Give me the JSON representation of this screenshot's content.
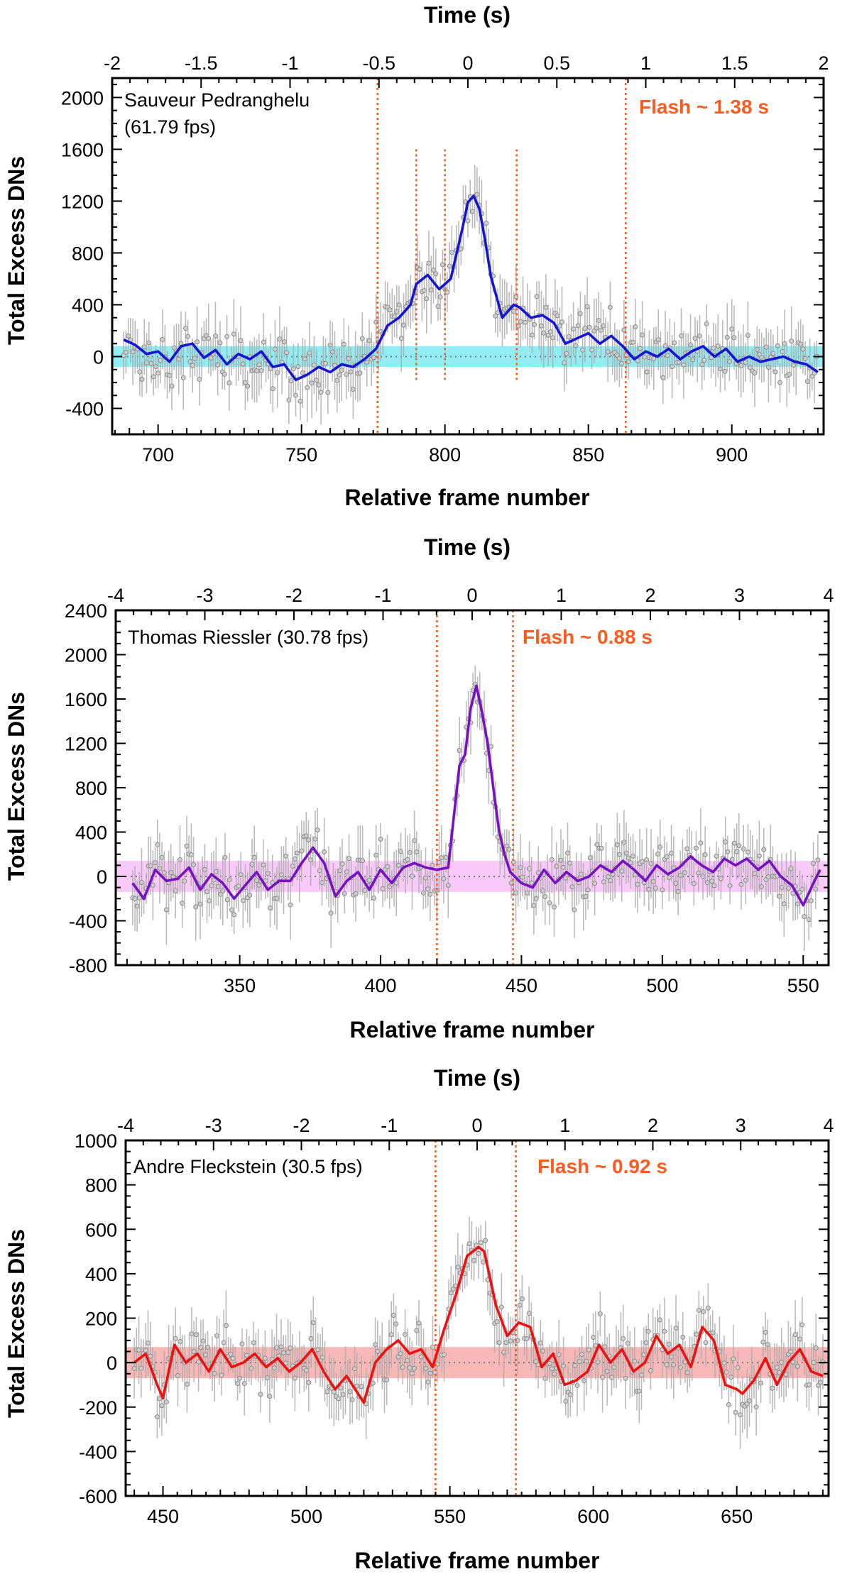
{
  "figure": {
    "colors": {
      "flash_line": "#ff5a1f",
      "points": "#aaaaaa",
      "zero_line": "#777777"
    }
  },
  "chart_data": [
    {
      "type": "line",
      "title": "Sauveur Pedranghelu",
      "subtitle": "(61.79 fps)",
      "annotation": "Flash ~ 1.38 s",
      "xlabel": "Relative frame number",
      "top_xlabel": "Time (s)",
      "ylabel": "Total Excess DNs",
      "xlim": [
        684,
        932
      ],
      "ylim": [
        -600,
        2150
      ],
      "xticks": [
        700,
        750,
        800,
        850,
        900
      ],
      "yticks": [
        -400,
        0,
        400,
        800,
        1200,
        1600,
        2000
      ],
      "top_xlim": [
        -2,
        2
      ],
      "top_xticks": [
        "-2",
        "-1.5",
        "-1",
        "-0.5",
        "0",
        "0.5",
        "1",
        "1.5",
        "2"
      ],
      "line_color": "#1515d4",
      "band_color": "#6fe6ee",
      "band": [
        -80,
        80
      ],
      "flash_lines": [
        776.5,
        863
      ],
      "sub_flash_lines": [
        {
          "x": 790,
          "y_top": 1600
        },
        {
          "x": 800,
          "y_top": 1600
        },
        {
          "x": 825,
          "y_top": 1600
        }
      ],
      "series": [
        {
          "name": "smoothed",
          "x": [
            688,
            692,
            696,
            700,
            704,
            708,
            712,
            716,
            720,
            724,
            728,
            732,
            736,
            740,
            744,
            748,
            752,
            756,
            760,
            764,
            768,
            772,
            776,
            780,
            784,
            788,
            790,
            794,
            798,
            802,
            806,
            808,
            810,
            812,
            814,
            816,
            820,
            824,
            826,
            830,
            834,
            838,
            842,
            846,
            850,
            854,
            858,
            862,
            866,
            870,
            874,
            878,
            882,
            886,
            890,
            894,
            898,
            902,
            906,
            910,
            914,
            918,
            922,
            926,
            930
          ],
          "y": [
            130,
            90,
            20,
            40,
            -40,
            80,
            100,
            -10,
            50,
            -60,
            20,
            -20,
            40,
            -80,
            -60,
            -180,
            -140,
            -80,
            -120,
            -60,
            -80,
            -20,
            60,
            240,
            300,
            400,
            560,
            630,
            520,
            600,
            980,
            1190,
            1240,
            1140,
            900,
            620,
            300,
            400,
            380,
            300,
            320,
            260,
            100,
            140,
            180,
            100,
            160,
            80,
            -20,
            40,
            0,
            60,
            -20,
            40,
            80,
            0,
            60,
            -40,
            0,
            -40,
            -20,
            0,
            -40,
            -60,
            -120
          ]
        }
      ]
    },
    {
      "type": "line",
      "title": "Thomas Riessler (30.78 fps)",
      "subtitle": "",
      "annotation": "Flash ~ 0.88 s",
      "xlabel": "Relative frame number",
      "top_xlabel": "Time (s)",
      "ylabel": "Total Excess DNs",
      "xlim": [
        306,
        559
      ],
      "ylim": [
        -800,
        2400
      ],
      "xticks": [
        350,
        400,
        450,
        500,
        550
      ],
      "yticks": [
        -800,
        -400,
        0,
        400,
        800,
        1200,
        1600,
        2000,
        2400
      ],
      "top_xlim": [
        -4,
        4
      ],
      "top_xticks": [
        "-4",
        "-3",
        "-2",
        "-1",
        "0",
        "1",
        "2",
        "3",
        "4"
      ],
      "line_color": "#7a10c4",
      "band_color": "#f7b8f7",
      "band": [
        -140,
        140
      ],
      "flash_lines": [
        420,
        447
      ],
      "sub_flash_lines": [],
      "series": [
        {
          "name": "smoothed",
          "x": [
            312,
            316,
            320,
            324,
            328,
            332,
            336,
            340,
            344,
            348,
            352,
            356,
            360,
            364,
            368,
            372,
            376,
            380,
            384,
            388,
            392,
            396,
            400,
            404,
            408,
            412,
            416,
            420,
            424,
            428,
            430,
            432,
            434,
            436,
            438,
            440,
            442,
            444,
            446,
            450,
            454,
            458,
            462,
            466,
            470,
            474,
            478,
            482,
            486,
            490,
            494,
            498,
            502,
            506,
            510,
            514,
            518,
            522,
            526,
            530,
            534,
            538,
            542,
            546,
            550,
            554,
            556
          ],
          "y": [
            -60,
            -200,
            60,
            -40,
            -20,
            80,
            -120,
            20,
            -60,
            -200,
            -80,
            40,
            -120,
            -40,
            -40,
            120,
            260,
            120,
            -180,
            -40,
            40,
            -120,
            60,
            -60,
            80,
            120,
            80,
            60,
            80,
            1000,
            1100,
            1520,
            1720,
            1480,
            1200,
            800,
            420,
            200,
            40,
            -60,
            -100,
            60,
            -60,
            40,
            -40,
            0,
            100,
            40,
            140,
            60,
            -40,
            100,
            20,
            80,
            180,
            100,
            40,
            160,
            100,
            160,
            60,
            140,
            0,
            -80,
            -260,
            -40,
            60
          ]
        }
      ]
    },
    {
      "type": "line",
      "title": "Andre Fleckstein  (30.5 fps)",
      "subtitle": "",
      "annotation": "Flash ~ 0.92 s",
      "xlabel": "Relative frame number",
      "top_xlabel": "Time (s)",
      "ylabel": "Total Excess DNs",
      "xlim": [
        437,
        682
      ],
      "ylim": [
        -600,
        1000
      ],
      "xticks": [
        450,
        500,
        550,
        600,
        650
      ],
      "yticks": [
        -600,
        -400,
        -200,
        0,
        200,
        400,
        600,
        800,
        1000
      ],
      "top_xlim": [
        -4,
        4
      ],
      "top_xticks": [
        "-4",
        "-3",
        "-2",
        "-1",
        "0",
        "1",
        "2",
        "3",
        "4"
      ],
      "line_color": "#ee1111",
      "band_color": "#f7a0a0",
      "band": [
        -70,
        70
      ],
      "flash_lines": [
        545,
        573
      ],
      "sub_flash_lines": [],
      "series": [
        {
          "name": "smoothed",
          "x": [
            440,
            444,
            448,
            450,
            454,
            458,
            462,
            466,
            470,
            474,
            478,
            482,
            486,
            490,
            494,
            498,
            502,
            506,
            510,
            514,
            518,
            520,
            524,
            528,
            532,
            536,
            540,
            544,
            548,
            552,
            556,
            560,
            562,
            566,
            570,
            574,
            578,
            582,
            586,
            590,
            594,
            598,
            602,
            606,
            610,
            614,
            618,
            622,
            626,
            630,
            634,
            638,
            642,
            646,
            650,
            652,
            656,
            660,
            664,
            668,
            672,
            676,
            680
          ],
          "y": [
            0,
            40,
            -100,
            -160,
            80,
            0,
            40,
            -40,
            60,
            -20,
            0,
            40,
            -20,
            20,
            -40,
            0,
            60,
            -40,
            -120,
            -60,
            -140,
            -180,
            0,
            60,
            100,
            40,
            60,
            -20,
            150,
            300,
            480,
            520,
            500,
            260,
            120,
            180,
            160,
            -20,
            40,
            -100,
            -80,
            -40,
            80,
            0,
            60,
            -40,
            0,
            120,
            40,
            80,
            -20,
            160,
            100,
            -100,
            -120,
            -140,
            -80,
            20,
            -100,
            0,
            60,
            -40,
            -60
          ]
        }
      ]
    }
  ]
}
